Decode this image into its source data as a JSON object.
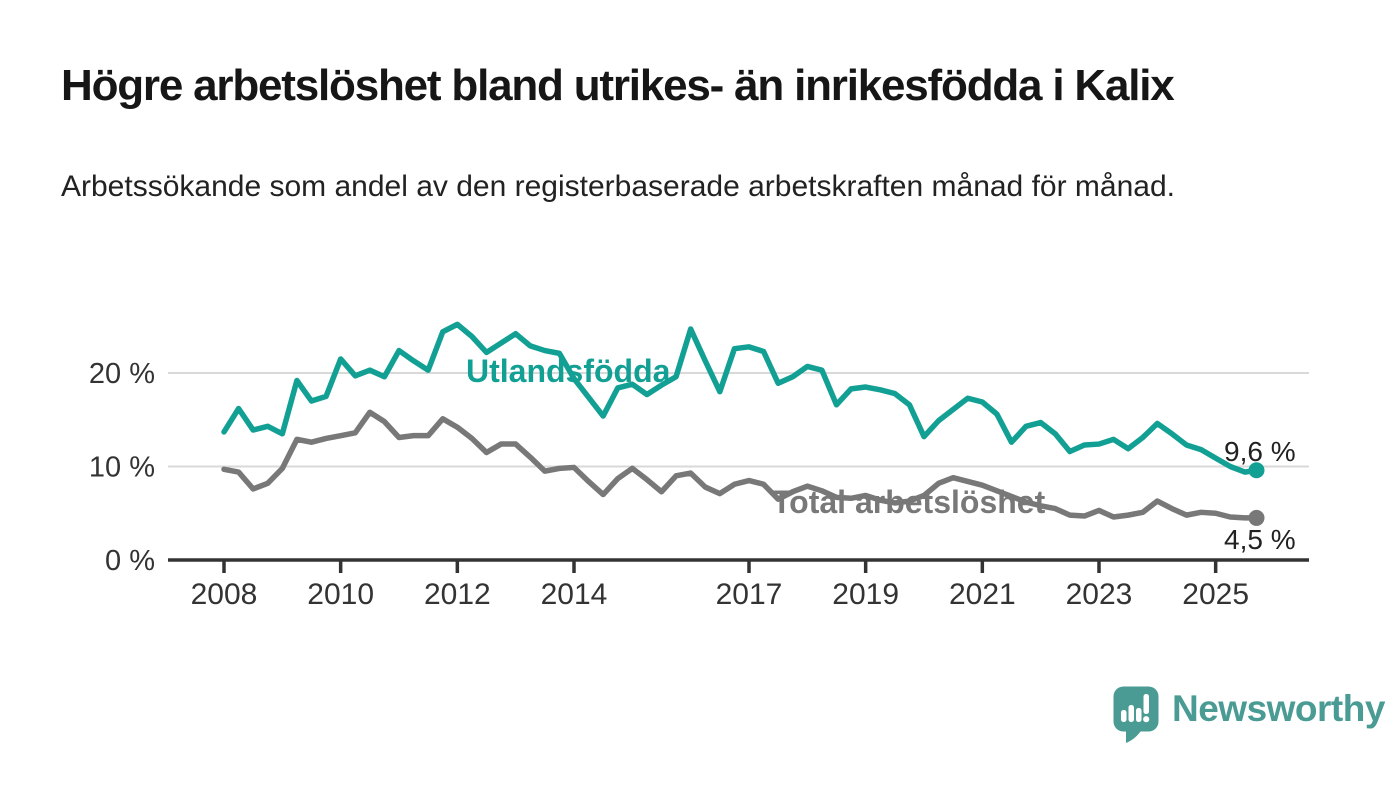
{
  "header": {
    "title": "Högre arbetslöshet bland utrikes- än inrikesfödda i Kalix",
    "subtitle": "Arbetssökande som andel av den registerbaserade arbetskraften månad för månad."
  },
  "colors": {
    "accent_teal": "#13A094",
    "series_gray": "#787878",
    "gridline": "#D9D9D9",
    "axis": "#333333",
    "tick_label": "#333333",
    "value_label": "#222222",
    "logo_teal": "#4A9B94"
  },
  "chart_data": {
    "type": "line",
    "title": "",
    "xlabel": "",
    "ylabel": "",
    "grid": "horizontal-only",
    "x_axis": {
      "unit": "year",
      "tick_years": [
        2008,
        2010,
        2012,
        2014,
        2017,
        2019,
        2021,
        2023,
        2025
      ],
      "range": [
        2007.0,
        2026.4
      ]
    },
    "y_axis": {
      "unit": "%",
      "ticks": [
        {
          "value": 0,
          "label": "0 %"
        },
        {
          "value": 10,
          "label": "10 %"
        },
        {
          "value": 20,
          "label": "20 %"
        }
      ],
      "ylim": [
        0,
        27
      ]
    },
    "series": [
      {
        "name": "Utlandsfödda",
        "color": "#13A094",
        "end_label": "9,6 %",
        "end_value": 9.6,
        "x": [
          2008.0,
          2008.25,
          2008.5,
          2008.75,
          2009.0,
          2009.25,
          2009.5,
          2009.75,
          2010.0,
          2010.25,
          2010.5,
          2010.75,
          2011.0,
          2011.25,
          2011.5,
          2011.75,
          2012.0,
          2012.25,
          2012.5,
          2012.75,
          2013.0,
          2013.25,
          2013.5,
          2013.75,
          2014.0,
          2014.25,
          2014.5,
          2014.75,
          2015.0,
          2015.25,
          2015.5,
          2015.75,
          2016.0,
          2016.25,
          2016.5,
          2016.75,
          2017.0,
          2017.25,
          2017.5,
          2017.75,
          2018.0,
          2018.25,
          2018.5,
          2018.75,
          2019.0,
          2019.25,
          2019.5,
          2019.75,
          2020.0,
          2020.25,
          2020.5,
          2020.75,
          2021.0,
          2021.25,
          2021.5,
          2021.75,
          2022.0,
          2022.25,
          2022.5,
          2022.75,
          2023.0,
          2023.25,
          2023.5,
          2023.75,
          2024.0,
          2024.25,
          2024.5,
          2024.75,
          2025.0,
          2025.25,
          2025.5,
          2025.7
        ],
        "values": [
          13.7,
          16.2,
          13.9,
          14.3,
          13.5,
          19.2,
          17.0,
          17.5,
          21.5,
          19.7,
          20.3,
          19.6,
          22.4,
          21.3,
          20.3,
          24.4,
          25.2,
          23.9,
          22.2,
          23.2,
          24.2,
          22.9,
          22.4,
          22.1,
          19.4,
          17.4,
          15.4,
          18.4,
          18.8,
          17.7,
          18.7,
          19.6,
          24.7,
          21.3,
          18.0,
          22.6,
          22.8,
          22.3,
          18.9,
          19.6,
          20.7,
          20.3,
          16.6,
          18.3,
          18.5,
          18.2,
          17.8,
          16.6,
          13.2,
          14.9,
          16.1,
          17.3,
          16.9,
          15.6,
          12.6,
          14.3,
          14.7,
          13.5,
          11.6,
          12.3,
          12.4,
          12.9,
          11.9,
          13.1,
          14.6,
          13.5,
          12.3,
          11.8,
          10.9,
          10.0,
          9.4,
          9.6
        ]
      },
      {
        "name": "Total arbetslöshet",
        "color": "#787878",
        "end_label": "4,5 %",
        "end_value": 4.5,
        "x": [
          2008.0,
          2008.25,
          2008.5,
          2008.75,
          2009.0,
          2009.25,
          2009.5,
          2009.75,
          2010.0,
          2010.25,
          2010.5,
          2010.75,
          2011.0,
          2011.25,
          2011.5,
          2011.75,
          2012.0,
          2012.25,
          2012.5,
          2012.75,
          2013.0,
          2013.25,
          2013.5,
          2013.75,
          2014.0,
          2014.25,
          2014.5,
          2014.75,
          2015.0,
          2015.25,
          2015.5,
          2015.75,
          2016.0,
          2016.25,
          2016.5,
          2016.75,
          2017.0,
          2017.25,
          2017.5,
          2017.75,
          2018.0,
          2018.25,
          2018.5,
          2018.75,
          2019.0,
          2019.25,
          2019.5,
          2019.75,
          2020.0,
          2020.25,
          2020.5,
          2020.75,
          2021.0,
          2021.25,
          2021.5,
          2021.75,
          2022.0,
          2022.25,
          2022.5,
          2022.75,
          2023.0,
          2023.25,
          2023.5,
          2023.75,
          2024.0,
          2024.25,
          2024.5,
          2024.75,
          2025.0,
          2025.25,
          2025.5,
          2025.7
        ],
        "values": [
          9.7,
          9.4,
          7.6,
          8.2,
          9.8,
          12.9,
          12.6,
          13.0,
          13.3,
          13.6,
          15.8,
          14.8,
          13.1,
          13.3,
          13.3,
          15.1,
          14.2,
          13.0,
          11.5,
          12.4,
          12.4,
          11.0,
          9.5,
          9.8,
          9.9,
          8.4,
          7.0,
          8.7,
          9.8,
          8.6,
          7.3,
          9.0,
          9.3,
          7.8,
          7.1,
          8.1,
          8.5,
          8.1,
          6.5,
          7.3,
          7.9,
          7.4,
          6.7,
          6.6,
          6.9,
          6.4,
          6.1,
          6.3,
          6.9,
          8.2,
          8.8,
          8.4,
          8.0,
          7.4,
          6.8,
          6.2,
          5.8,
          5.5,
          4.8,
          4.7,
          5.3,
          4.6,
          4.8,
          5.1,
          6.3,
          5.5,
          4.8,
          5.1,
          5.0,
          4.6,
          4.5,
          4.5
        ]
      }
    ]
  },
  "footer": {
    "brand": "Newsworthy",
    "logo_icon": "speech-bubble-bar-chart-icon"
  }
}
